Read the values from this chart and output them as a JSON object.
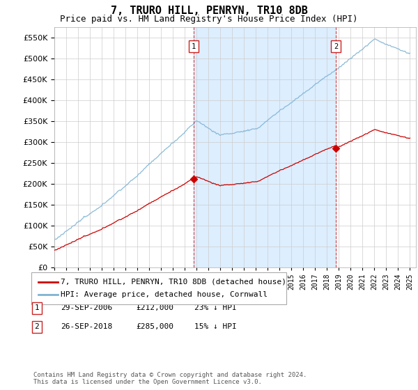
{
  "title": "7, TRURO HILL, PENRYN, TR10 8DB",
  "subtitle": "Price paid vs. HM Land Registry's House Price Index (HPI)",
  "ylabel_ticks": [
    0,
    50000,
    100000,
    150000,
    200000,
    250000,
    300000,
    350000,
    400000,
    450000,
    500000,
    550000
  ],
  "ylim": [
    0,
    575000
  ],
  "xlim_start": 1995.0,
  "xlim_end": 2025.5,
  "transactions": [
    {
      "label": "1",
      "date": "29-SEP-2006",
      "price": 212000,
      "year": 2006.75,
      "pct": "23%",
      "dir": "↓"
    },
    {
      "label": "2",
      "date": "26-SEP-2018",
      "price": 285000,
      "year": 2018.75,
      "pct": "15%",
      "dir": "↓"
    }
  ],
  "hpi_line_color": "#7fb3d3",
  "property_line_color": "#cc0000",
  "dashed_line_color": "#cc2222",
  "shade_color": "#ddeeff",
  "legend_label_property": "7, TRURO HILL, PENRYN, TR10 8DB (detached house)",
  "legend_label_hpi": "HPI: Average price, detached house, Cornwall",
  "footer": "Contains HM Land Registry data © Crown copyright and database right 2024.\nThis data is licensed under the Open Government Licence v3.0.",
  "background_color": "#ffffff",
  "grid_color": "#cccccc",
  "title_fontsize": 11,
  "subtitle_fontsize": 9,
  "tick_fontsize": 8,
  "legend_fontsize": 8,
  "footer_fontsize": 6.5
}
